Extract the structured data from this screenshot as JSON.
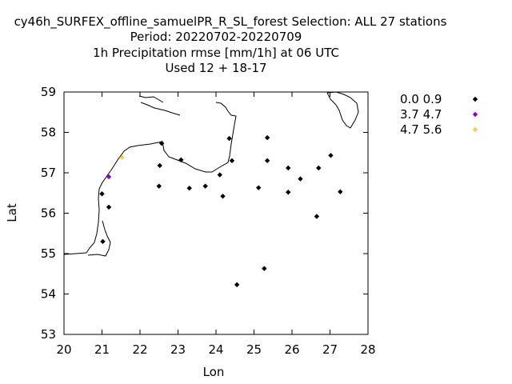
{
  "chart_data": {
    "type": "scatter",
    "title_lines": [
      "cy46h_SURFEX_offline_samuelPR_R_SL_forest   Selection: ALL     27 stations",
      "Period: 20220702-20220709",
      "1h Precipitation rmse [mm/1h] at  06 UTC",
      "Used  12 + 18-17"
    ],
    "xlabel": "Lon",
    "ylabel": "Lat",
    "xlim": [
      20,
      28
    ],
    "ylim": [
      53,
      59
    ],
    "xticks": [
      20,
      21,
      22,
      23,
      24,
      25,
      26,
      27,
      28
    ],
    "yticks": [
      53,
      54,
      55,
      56,
      57,
      58,
      59
    ],
    "grid": false,
    "legend_position": "right",
    "legend": [
      {
        "label": "0.0 0.9",
        "color": "#000000"
      },
      {
        "label": "3.7 4.7",
        "color": "#9400d3"
      },
      {
        "label": "4.7 5.6",
        "color": "#f5d142"
      }
    ],
    "series": [
      {
        "name": "0.0 0.9",
        "color": "#000000",
        "points": [
          [
            22.57,
            57.73
          ],
          [
            22.52,
            57.18
          ],
          [
            22.5,
            56.67
          ],
          [
            23.08,
            57.32
          ],
          [
            23.3,
            56.62
          ],
          [
            23.72,
            56.67
          ],
          [
            24.1,
            56.95
          ],
          [
            24.18,
            56.42
          ],
          [
            24.35,
            57.85
          ],
          [
            24.42,
            57.3
          ],
          [
            25.12,
            56.63
          ],
          [
            25.35,
            57.87
          ],
          [
            25.35,
            57.3
          ],
          [
            25.27,
            54.63
          ],
          [
            24.55,
            54.23
          ],
          [
            25.9,
            57.12
          ],
          [
            25.9,
            56.52
          ],
          [
            26.22,
            56.85
          ],
          [
            26.7,
            57.12
          ],
          [
            26.65,
            55.92
          ],
          [
            27.02,
            57.43
          ],
          [
            27.27,
            56.53
          ],
          [
            21.0,
            56.48
          ],
          [
            21.18,
            56.15
          ],
          [
            21.02,
            55.3
          ]
        ]
      },
      {
        "name": "3.7 4.7",
        "color": "#9400d3",
        "points": [
          [
            21.18,
            56.9
          ]
        ]
      },
      {
        "name": "4.7 5.6",
        "color": "#f5d142",
        "points": [
          [
            21.53,
            57.38
          ]
        ]
      }
    ]
  }
}
